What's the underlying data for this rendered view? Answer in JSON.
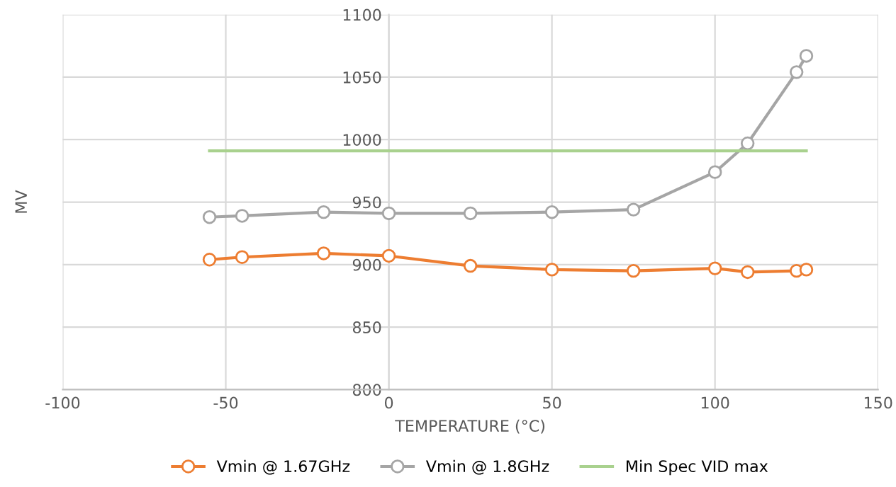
{
  "chart_data": {
    "type": "line",
    "xlabel": "TEMPERATURE (°C)",
    "ylabel": "MV",
    "xlim": [
      -100,
      150
    ],
    "xticks": [
      -100,
      -50,
      0,
      50,
      100,
      150
    ],
    "ylim": [
      800,
      1100
    ],
    "yticks": [
      800,
      850,
      900,
      950,
      1000,
      1050,
      1100
    ],
    "grid": true,
    "legend": "bottom",
    "marker": "circle",
    "line_style": "solid",
    "series": [
      {
        "name": "Vmin @ 1.67GHz",
        "color": "#ed7d31",
        "x": [
          -55,
          -45,
          -20,
          0,
          25,
          50,
          75,
          100,
          110,
          125,
          128
        ],
        "values": [
          904,
          906,
          909,
          907,
          899,
          896,
          895,
          897,
          894,
          895,
          896
        ]
      },
      {
        "name": "Vmin @ 1.8GHz",
        "color": "#a5a5a5",
        "x": [
          -55,
          -45,
          -20,
          0,
          25,
          50,
          75,
          100,
          110,
          125,
          128
        ],
        "values": [
          938,
          939,
          942,
          941,
          941,
          942,
          944,
          974,
          997,
          1054,
          1067
        ]
      },
      {
        "name": "Min Spec VID max",
        "color": "#a9d18e",
        "marker": "none",
        "x": [
          -55,
          128
        ],
        "values": [
          991,
          991
        ]
      }
    ]
  }
}
